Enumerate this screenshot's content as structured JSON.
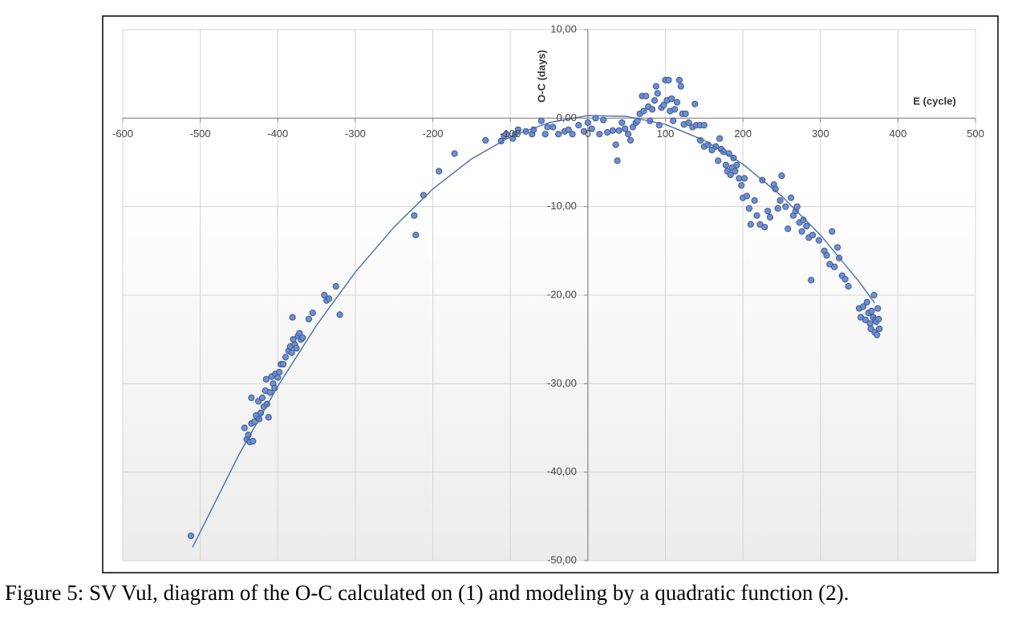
{
  "chart_data": {
    "type": "scatter",
    "caption": "Figure 5: SV Vul, diagram of the O-C calculated on (1) and modeling by a quadratic function (2).",
    "xlabel": "E (cycle)",
    "ylabel": "O-C (days)",
    "xlim": [
      -600,
      500
    ],
    "xticks": [
      -600,
      -500,
      -400,
      -300,
      -200,
      -100,
      0,
      100,
      200,
      300,
      400,
      500
    ],
    "ylim": [
      -50,
      10
    ],
    "yticks": [
      {
        "value": -50,
        "label": "-50,00"
      },
      {
        "value": -40,
        "label": "-40,00"
      },
      {
        "value": -30,
        "label": "-30,00"
      },
      {
        "value": -20,
        "label": "-20,00"
      },
      {
        "value": -10,
        "label": "-10,00"
      },
      {
        "value": 0,
        "label": "0,00"
      },
      {
        "value": 10,
        "label": "10,00"
      }
    ],
    "grid": true,
    "series": [
      {
        "type": "scatter",
        "color": "#6f8fcf",
        "x": [
          -512,
          -443,
          -440,
          -438,
          -436,
          -434,
          -432,
          -434,
          -430,
          -428,
          -425,
          -424,
          -422,
          -420,
          -418,
          -416,
          -414,
          -412,
          -415,
          -410,
          -408,
          -406,
          -404,
          -403,
          -400,
          -398,
          -396,
          -393,
          -390,
          -386,
          -384,
          -382,
          -381,
          -380,
          -378,
          -376,
          -374,
          -372,
          -370,
          -368,
          -360,
          -355,
          -340,
          -337,
          -334,
          -325,
          -320,
          -224,
          -222,
          -212,
          -192,
          -172,
          -132,
          -112,
          -108,
          -105,
          -97,
          -94,
          -90,
          -80,
          -72,
          -70,
          -60,
          -55,
          -52,
          -45,
          -38,
          -30,
          -25,
          -20,
          -12,
          -5,
          0,
          5,
          10,
          15,
          20,
          25,
          32,
          36,
          38,
          40,
          44,
          48,
          52,
          55,
          58,
          62,
          64,
          67,
          70,
          72,
          75,
          78,
          80,
          83,
          86,
          88,
          90,
          92,
          95,
          98,
          100,
          102,
          104,
          106,
          108,
          110,
          112,
          115,
          118,
          120,
          122,
          124,
          126,
          130,
          135,
          138,
          140,
          145,
          150,
          145,
          150,
          155,
          160,
          165,
          168,
          170,
          172,
          175,
          178,
          180,
          182,
          184,
          186,
          188,
          190,
          192,
          195,
          198,
          200,
          202,
          205,
          208,
          210,
          215,
          218,
          222,
          225,
          228,
          232,
          235,
          240,
          242,
          245,
          248,
          250,
          255,
          258,
          262,
          265,
          268,
          270,
          273,
          276,
          278,
          282,
          285,
          288,
          290,
          298,
          305,
          308,
          312,
          315,
          318,
          322,
          324,
          328,
          332,
          336,
          350,
          352,
          355,
          358,
          360,
          362,
          364,
          365,
          366,
          368,
          369,
          370,
          371,
          372,
          373,
          374,
          375,
          376
        ],
        "values": [
          -47.2,
          -35.0,
          -36.3,
          -35.8,
          -36.6,
          -34.5,
          -36.5,
          -31.6,
          -34.3,
          -33.6,
          -32.0,
          -34.0,
          -33.3,
          -31.6,
          -32.6,
          -30.8,
          -32.3,
          -33.8,
          -29.5,
          -31.0,
          -29.2,
          -30.0,
          -30.5,
          -28.9,
          -29.3,
          -28.7,
          -27.8,
          -27.8,
          -27.0,
          -26.3,
          -25.8,
          -26.5,
          -22.5,
          -25.0,
          -25.6,
          -26.0,
          -24.6,
          -24.3,
          -25.0,
          -24.8,
          -22.7,
          -22.0,
          -20.0,
          -20.6,
          -20.4,
          -19.0,
          -22.2,
          -11.0,
          -13.2,
          -8.7,
          -6.0,
          -4.0,
          -2.5,
          -2.6,
          -2.0,
          -1.8,
          -2.3,
          -1.8,
          -1.3,
          -1.5,
          -1.8,
          -1.3,
          -0.3,
          -1.8,
          -1.0,
          -1.0,
          -1.8,
          -1.5,
          -1.3,
          -1.8,
          -0.8,
          -1.5,
          -0.5,
          -1.2,
          0.0,
          -1.8,
          -0.2,
          -1.6,
          -1.4,
          -3.0,
          -4.8,
          -1.4,
          -0.5,
          -1.2,
          -1.8,
          -2.5,
          -1.0,
          -0.5,
          -0.3,
          0.5,
          2.5,
          0.8,
          2.5,
          1.3,
          -0.3,
          1.0,
          2.0,
          3.6,
          2.8,
          -0.8,
          1.2,
          1.5,
          4.3,
          2.0,
          4.3,
          0.8,
          2.2,
          -0.3,
          1.0,
          1.8,
          4.3,
          3.6,
          0.5,
          -0.7,
          0.5,
          -0.5,
          -1.0,
          1.6,
          -0.8,
          -0.8,
          -0.8,
          -2.5,
          -3.2,
          -3.0,
          -3.6,
          -3.2,
          -4.8,
          -2.3,
          -3.5,
          -3.8,
          -5.3,
          -6.0,
          -4.0,
          -6.4,
          -5.6,
          -4.5,
          -6.0,
          -5.3,
          -6.8,
          -7.6,
          -9.0,
          -6.8,
          -8.8,
          -10.2,
          -12.0,
          -9.3,
          -11.0,
          -12.0,
          -7.0,
          -12.3,
          -10.5,
          -11.2,
          -7.5,
          -8.0,
          -10.2,
          -9.3,
          -6.5,
          -10.0,
          -12.5,
          -9.0,
          -11.0,
          -10.5,
          -10.0,
          -11.8,
          -12.8,
          -11.5,
          -12.2,
          -13.5,
          -18.3,
          -13.2,
          -13.8,
          -15.0,
          -15.5,
          -16.5,
          -12.8,
          -16.8,
          -14.6,
          -15.8,
          -17.8,
          -18.2,
          -19.0,
          -21.5,
          -22.5,
          -21.3,
          -22.8,
          -20.8,
          -22.0,
          -23.2,
          -23.8,
          -21.8,
          -22.5,
          -20.0,
          -24.2,
          -22.8,
          -23.0,
          -24.5,
          -21.5,
          -22.7,
          -23.8
        ]
      },
      {
        "type": "line",
        "color": "#4a6fab",
        "x": [
          -510,
          -450,
          -400,
          -350,
          -300,
          -250,
          -200,
          -150,
          -100,
          -50,
          0,
          50,
          100,
          150,
          200,
          250,
          300,
          350,
          370
        ],
        "values": [
          -48.5,
          -38.0,
          -30.3,
          -23.4,
          -17.4,
          -12.3,
          -8.0,
          -4.6,
          -2.1,
          -0.5,
          0.3,
          0.2,
          -0.7,
          -2.5,
          -5.2,
          -8.8,
          -13.2,
          -18.5,
          -20.9
        ]
      }
    ]
  }
}
